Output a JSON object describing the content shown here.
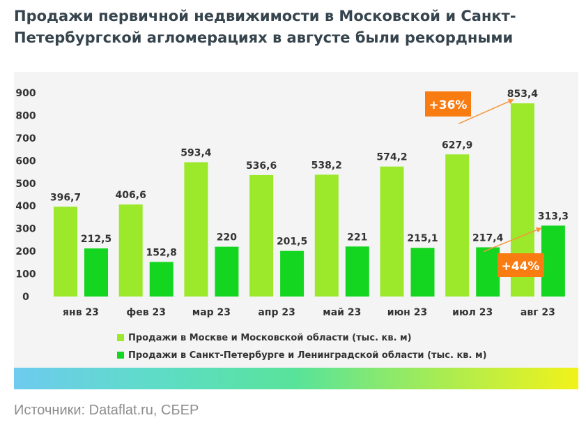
{
  "title": "Продажи первичной недвижимости в Московской и Санкт-Петербургской агломерациях в августе были рекордными",
  "source": "Источники: Dataflat.ru, СБЕР",
  "colors": {
    "moscow": "#9ce82b",
    "spb": "#14d620",
    "callout": "#f87c12",
    "arrow": "#f7953a",
    "text": "#333333"
  },
  "annotations": [
    {
      "label": "+36%",
      "series": 0,
      "from_category": "июл 23",
      "to_category": "авг 23"
    },
    {
      "label": "+44%",
      "series": 1,
      "from_category": "июл 23",
      "to_category": "авг 23"
    }
  ],
  "chart_data": {
    "type": "bar",
    "title": "Продажи первичной недвижимости в Московской и Санкт-Петербургской агломерациях в августе были рекордными",
    "categories": [
      "янв 23",
      "фев 23",
      "мар 23",
      "апр 23",
      "май 23",
      "июн 23",
      "июл 23",
      "авг 23"
    ],
    "series": [
      {
        "name": "Продажи в Москве и Московской области (тыс. кв. м)",
        "values": [
          396.7,
          406.6,
          593.4,
          536.6,
          538.2,
          574.2,
          627.9,
          853.4
        ],
        "labels": [
          "396,7",
          "406,6",
          "593,4",
          "536,6",
          "538,2",
          "574,2",
          "627,9",
          "853,4"
        ]
      },
      {
        "name": "Продажи в Санкт-Петербурге и Ленинградской области (тыс. кв. м)",
        "values": [
          212.5,
          152.8,
          220,
          201.5,
          221,
          215.1,
          217.4,
          313.3
        ],
        "labels": [
          "212,5",
          "152,8",
          "220",
          "201,5",
          "221",
          "215,1",
          "217,4",
          "313,3"
        ]
      }
    ],
    "yticks": [
      0,
      100,
      200,
      300,
      400,
      500,
      600,
      700,
      800,
      900
    ],
    "ylim": [
      0,
      900
    ],
    "grid": false,
    "legend": "bottom-left"
  }
}
